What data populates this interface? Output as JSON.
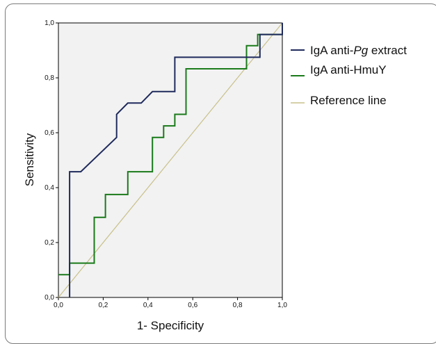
{
  "chart_data": {
    "type": "line",
    "xlabel": "1- Specificity",
    "ylabel": "Sensitivity",
    "xlim": [
      0,
      1
    ],
    "ylim": [
      0,
      1
    ],
    "x_ticks": [
      "0,0",
      "0,2",
      "0,4",
      "0,6",
      "0,8",
      "1,0"
    ],
    "y_ticks": [
      "0,0",
      "0,2",
      "0,4",
      "0,6",
      "0,8",
      "1,0"
    ],
    "x_tick_values": [
      0,
      0.2,
      0.4,
      0.6,
      0.8,
      1.0
    ],
    "y_tick_values": [
      0,
      0.2,
      0.4,
      0.6,
      0.8,
      1.0
    ],
    "grid": false,
    "legend_position": "right",
    "series": [
      {
        "name_prefix": "IgA anti-",
        "name_italic": "Pg",
        "name_suffix": " extract",
        "color": "#1f2a5c",
        "points": [
          [
            0.05,
            0.0
          ],
          [
            0.05,
            0.458
          ],
          [
            0.1,
            0.458
          ],
          [
            0.26,
            0.583
          ],
          [
            0.26,
            0.667
          ],
          [
            0.31,
            0.708
          ],
          [
            0.37,
            0.708
          ],
          [
            0.42,
            0.75
          ],
          [
            0.52,
            0.75
          ],
          [
            0.52,
            0.875
          ],
          [
            0.9,
            0.875
          ],
          [
            0.9,
            0.958
          ],
          [
            1.0,
            0.958
          ],
          [
            1.0,
            1.0
          ]
        ]
      },
      {
        "name": "IgA anti-HmuY",
        "color": "#1a7a1a",
        "points": [
          [
            0.0,
            0.083
          ],
          [
            0.05,
            0.083
          ],
          [
            0.05,
            0.125
          ],
          [
            0.16,
            0.125
          ],
          [
            0.16,
            0.292
          ],
          [
            0.21,
            0.292
          ],
          [
            0.21,
            0.375
          ],
          [
            0.31,
            0.375
          ],
          [
            0.31,
            0.458
          ],
          [
            0.42,
            0.458
          ],
          [
            0.42,
            0.583
          ],
          [
            0.47,
            0.583
          ],
          [
            0.47,
            0.625
          ],
          [
            0.52,
            0.625
          ],
          [
            0.52,
            0.667
          ],
          [
            0.57,
            0.667
          ],
          [
            0.57,
            0.833
          ],
          [
            0.84,
            0.833
          ],
          [
            0.84,
            0.917
          ],
          [
            0.89,
            0.917
          ],
          [
            0.89,
            0.958
          ],
          [
            1.0,
            0.958
          ],
          [
            1.0,
            1.0
          ]
        ]
      },
      {
        "name": "Reference line",
        "color": "#c8c08a",
        "points": [
          [
            0,
            0
          ],
          [
            1,
            1
          ]
        ]
      }
    ]
  }
}
